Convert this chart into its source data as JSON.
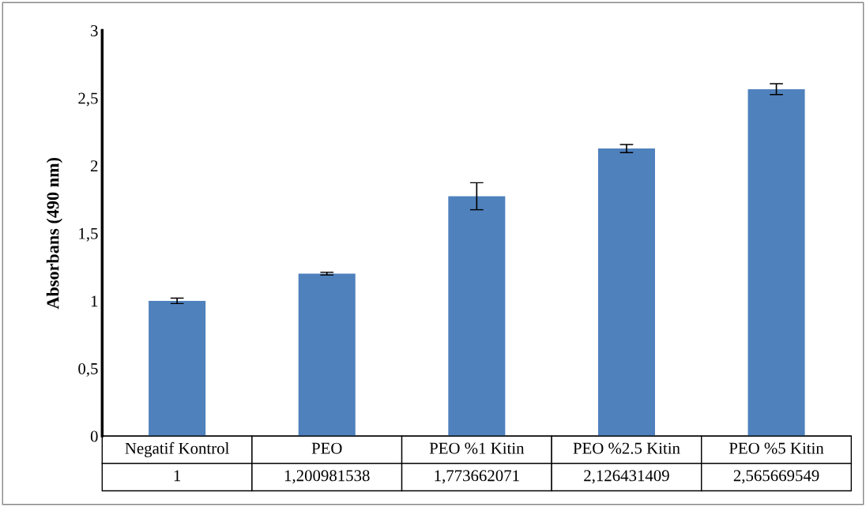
{
  "chart_data": {
    "type": "bar",
    "ylabel": "Absorbans (490 nm)",
    "categories": [
      "Negatif Kontrol",
      "PEO",
      "PEO %1 Kitin",
      "PEO %2.5 Kitin",
      "PEO %5 Kitin"
    ],
    "values": [
      1,
      1.200981538,
      1.773662071,
      2.126431409,
      2.565669549
    ],
    "value_labels": [
      "1",
      "1,200981538",
      "1,773662071",
      "2,126431409",
      "2,565669549"
    ],
    "errors": [
      0.02,
      0.01,
      0.1,
      0.03,
      0.04
    ],
    "color": "#4f81bd",
    "ylim": [
      0,
      3
    ],
    "yticks": [
      0,
      {
        "value": 0.5,
        "label": "0,5"
      },
      1,
      {
        "value": 1.5,
        "label": "1,5"
      },
      2,
      {
        "value": 2.5,
        "label": "2,5"
      },
      3
    ],
    "grid": false,
    "legend": false
  }
}
